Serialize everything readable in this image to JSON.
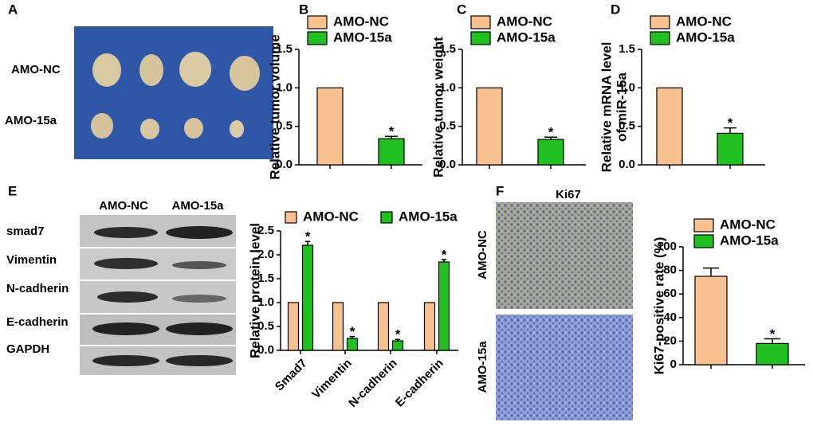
{
  "chart_data": [
    {
      "type": "bar",
      "panel": "B",
      "ylabel": "Relative tumor volume",
      "ylim": [
        0,
        1.5
      ],
      "yticks": [
        {
          "value": 0,
          "label": "0.0"
        },
        {
          "value": 0.5,
          "label": "0.5"
        },
        {
          "value": 1,
          "label": "1.0"
        },
        {
          "value": 1.5,
          "label": "1.5"
        }
      ],
      "series": [
        {
          "name": "AMO-NC",
          "color": "#f9c190",
          "values": [
            1.0
          ]
        },
        {
          "name": "AMO-15a",
          "color": "#20c020",
          "values": [
            0.34
          ],
          "errors": [
            0.03
          ],
          "markers": [
            "*"
          ]
        }
      ]
    },
    {
      "type": "bar",
      "panel": "C",
      "ylabel": "Relative tumor weight",
      "ylim": [
        0,
        1.5
      ],
      "yticks": [
        {
          "value": 0,
          "label": "0.0"
        },
        {
          "value": 0.5,
          "label": "0.5"
        },
        {
          "value": 1,
          "label": "1.0"
        },
        {
          "value": 1.5,
          "label": "1.5"
        }
      ],
      "series": [
        {
          "name": "AMO-NC",
          "color": "#f9c190",
          "values": [
            1.0
          ]
        },
        {
          "name": "AMO-15a",
          "color": "#20c020",
          "values": [
            0.33
          ],
          "errors": [
            0.03
          ],
          "markers": [
            "*"
          ]
        }
      ]
    },
    {
      "type": "bar",
      "panel": "D",
      "ylabel": [
        "Relative mRNA level",
        "of miR-15a"
      ],
      "ylim": [
        0,
        1.5
      ],
      "yticks": [
        {
          "value": 0,
          "label": "0.0"
        },
        {
          "value": 0.5,
          "label": "0.5"
        },
        {
          "value": 1,
          "label": "1.0"
        },
        {
          "value": 1.5,
          "label": "1.5"
        }
      ],
      "series": [
        {
          "name": "AMO-NC",
          "color": "#f9c190",
          "values": [
            1.0
          ]
        },
        {
          "name": "AMO-15a",
          "color": "#20c020",
          "values": [
            0.41
          ],
          "errors": [
            0.07
          ],
          "markers": [
            "*"
          ]
        }
      ]
    },
    {
      "type": "bar",
      "ylabel": "Relative protein level",
      "categories": [
        "Smad7",
        "Vimentin",
        "N-cadherin",
        "E-cadherin"
      ],
      "ylim": [
        0,
        2.5
      ],
      "yticks": [
        {
          "value": 0,
          "label": "0.0"
        },
        {
          "value": 0.5,
          "label": "0.5"
        },
        {
          "value": 1,
          "label": "1.0"
        },
        {
          "value": 1.5,
          "label": "1.5"
        },
        {
          "value": 2,
          "label": "2.0"
        },
        {
          "value": 2.5,
          "label": "2.5"
        }
      ],
      "series": [
        {
          "name": "AMO-NC",
          "color": "#f9c190",
          "values": [
            1,
            1,
            1,
            1
          ]
        },
        {
          "name": "AMO-15a",
          "color": "#20c020",
          "values": [
            2.2,
            0.25,
            0.2,
            1.85
          ],
          "errors": [
            0.08,
            0.04,
            0.03,
            0.05
          ],
          "markers": [
            "*",
            "*",
            "*",
            "*"
          ]
        }
      ]
    },
    {
      "type": "bar",
      "ylabel": "Ki67-positive rate (%)",
      "ylim": [
        0,
        100
      ],
      "yticks": [
        0,
        20,
        40,
        60,
        80,
        100
      ],
      "series": [
        {
          "name": "AMO-NC",
          "color": "#f9c190",
          "values": [
            75
          ],
          "errors": [
            7
          ]
        },
        {
          "name": "AMO-15a",
          "color": "#20c020",
          "values": [
            18
          ],
          "errors": [
            4
          ],
          "markers": [
            "*"
          ]
        }
      ]
    }
  ],
  "images": {
    "tumors": {
      "panel": "A",
      "rows": [
        "AMO-NC",
        "AMO-15a"
      ]
    },
    "blot": {
      "panel": "E",
      "columns": [
        "AMO-NC",
        "AMO-15a"
      ],
      "rows": [
        "smad7",
        "Vimentin",
        "N-cadherin",
        "E-cadherin",
        "GAPDH"
      ]
    },
    "ihc": {
      "panel": "F",
      "title": "Ki67",
      "rows": [
        "AMO-NC",
        "AMO-15a"
      ]
    }
  }
}
